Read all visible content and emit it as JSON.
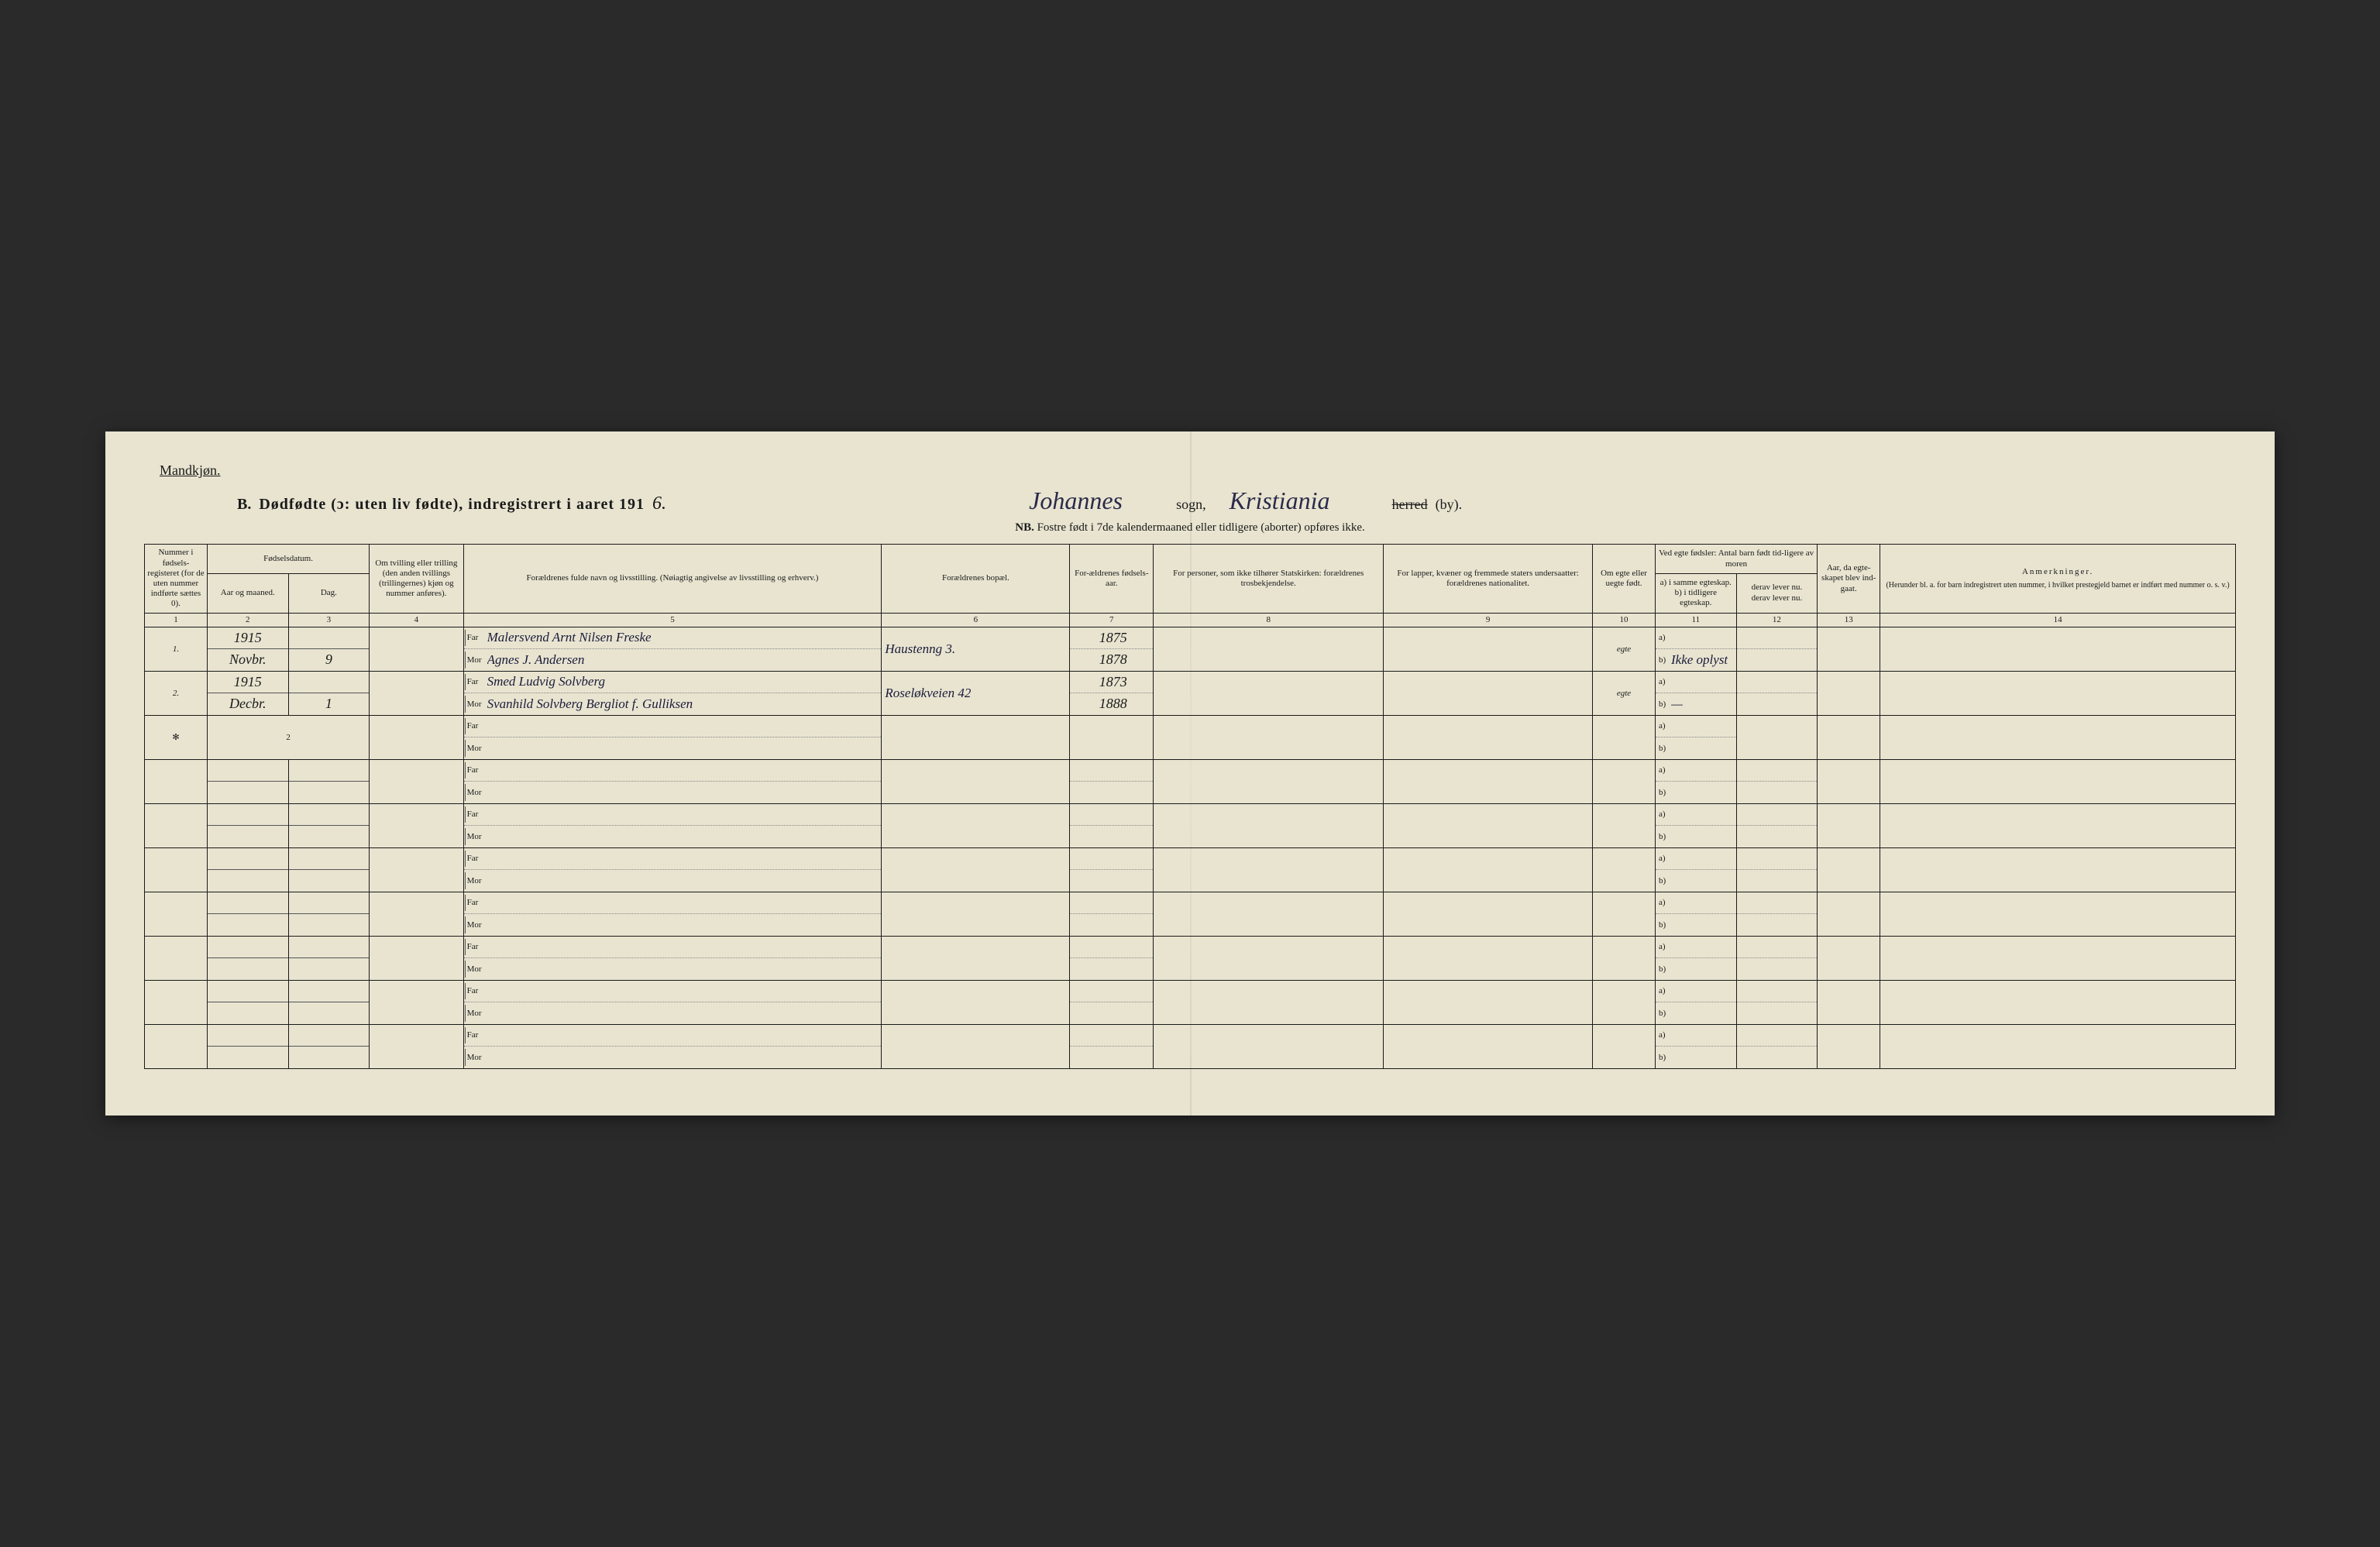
{
  "page": {
    "background_color": "#e8e4d0",
    "ink_color": "#1a1a1a",
    "handwriting_color": "#2a2a4a",
    "gender_label": "Mandkjøn.",
    "title_letter": "B.",
    "title_main": "Dødfødte (ɔ: uten liv fødte), indregistrert i aaret 191",
    "title_year_hw": "6.",
    "parish_hw": "Johannes",
    "sogn_label": "sogn,",
    "city_hw": "Kristiania",
    "herred_struck": "herred",
    "by_label": "(by).",
    "nb_label": "NB.",
    "nb_text": "Fostre født i 7de kalendermaaned eller tidligere (aborter) opføres ikke."
  },
  "columns": {
    "c1": "Nummer i fødsels-registeret (for de uten nummer indførte sættes 0).",
    "c2_top": "Fødselsdatum.",
    "c2_aar": "Aar og maaned.",
    "c2_dag": "Dag.",
    "c4": "Om tvilling eller trilling (den anden tvillings (trillingernes) kjøn og nummer anføres).",
    "c5": "Forældrenes fulde navn og livsstilling. (Nøiagtig angivelse av livsstilling og erhverv.)",
    "c6": "Forældrenes bopæl.",
    "c7": "For-ældrenes fødsels-aar.",
    "c8": "For personer, som ikke tilhører Statskirken: forældrenes trosbekjendelse.",
    "c9": "For lapper, kvæner og fremmede staters undersaatter: forældrenes nationalitet.",
    "c10": "Om egte eller uegte født.",
    "c11_12_top": "Ved egte fødsler: Antal barn født tid-ligere av moren",
    "c11_a": "a) i samme egteskap.",
    "c11_b": "b) i tidligere egteskap.",
    "c12_a": "derav lever nu.",
    "c12_b": "derav lever nu.",
    "c13": "Aar, da egte-skapet blev ind-gaat.",
    "c14_top": "Anmerkninger.",
    "c14_sub": "(Herunder bl. a. for barn indregistrert uten nummer, i hvilket prestegjeld barnet er indført med nummer o. s. v.)",
    "far_label": "Far",
    "mor_label": "Mor",
    "a_label": "a)",
    "b_label": "b)"
  },
  "colnums": [
    "1",
    "2",
    "3",
    "4",
    "5",
    "6",
    "7",
    "8",
    "9",
    "10",
    "11",
    "12",
    "13",
    "14"
  ],
  "rows": [
    {
      "num": "1.",
      "year": "1915",
      "month": "Novbr.",
      "day": "9",
      "twin": "",
      "far": "Malersvend Arnt Nilsen Freske",
      "mor": "Agnes J. Andersen",
      "bopael": "Haustenng 3.",
      "far_year": "1875",
      "mor_year": "1878",
      "stats": "",
      "lapp": "",
      "egte": "egte",
      "c11_hw": "Ikke oplyst",
      "c12_hw": "",
      "c13": "",
      "anmerk": ""
    },
    {
      "num": "2.",
      "year": "1915",
      "month": "Decbr.",
      "day": "1",
      "twin": "",
      "far": "Smed Ludvig Solvberg",
      "mor": "Svanhild Solvberg Bergliot f. Gulliksen",
      "bopael": "Roseløkveien 42",
      "far_year": "1873",
      "mor_year": "1888",
      "stats": "",
      "lapp": "",
      "egte": "egte",
      "c11_hw": "—",
      "c12_hw": "",
      "c13": "",
      "anmerk": ""
    }
  ],
  "summary": {
    "mark": "✻",
    "value": "2"
  },
  "empty_rows": 7
}
